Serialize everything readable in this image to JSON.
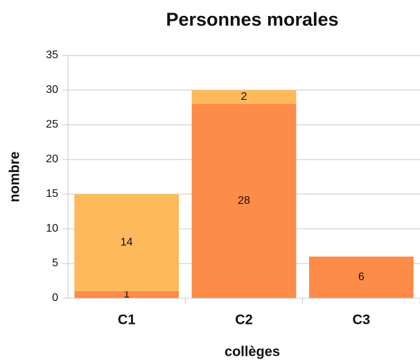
{
  "chart_data": {
    "type": "stacked_bar",
    "title": "Personnes morales",
    "x_label": "collèges",
    "y_label": "nombre",
    "categories": [
      "C1",
      "C2",
      "C3"
    ],
    "series": [
      {
        "color": "#fc8c48",
        "values": [
          1,
          28,
          6
        ]
      },
      {
        "color": "#fdb95a",
        "values": [
          14,
          2,
          null
        ]
      }
    ],
    "ylim": [
      0,
      35
    ],
    "yticks": [
      0,
      5,
      10,
      15,
      20,
      25,
      30,
      35
    ],
    "grid": true
  }
}
